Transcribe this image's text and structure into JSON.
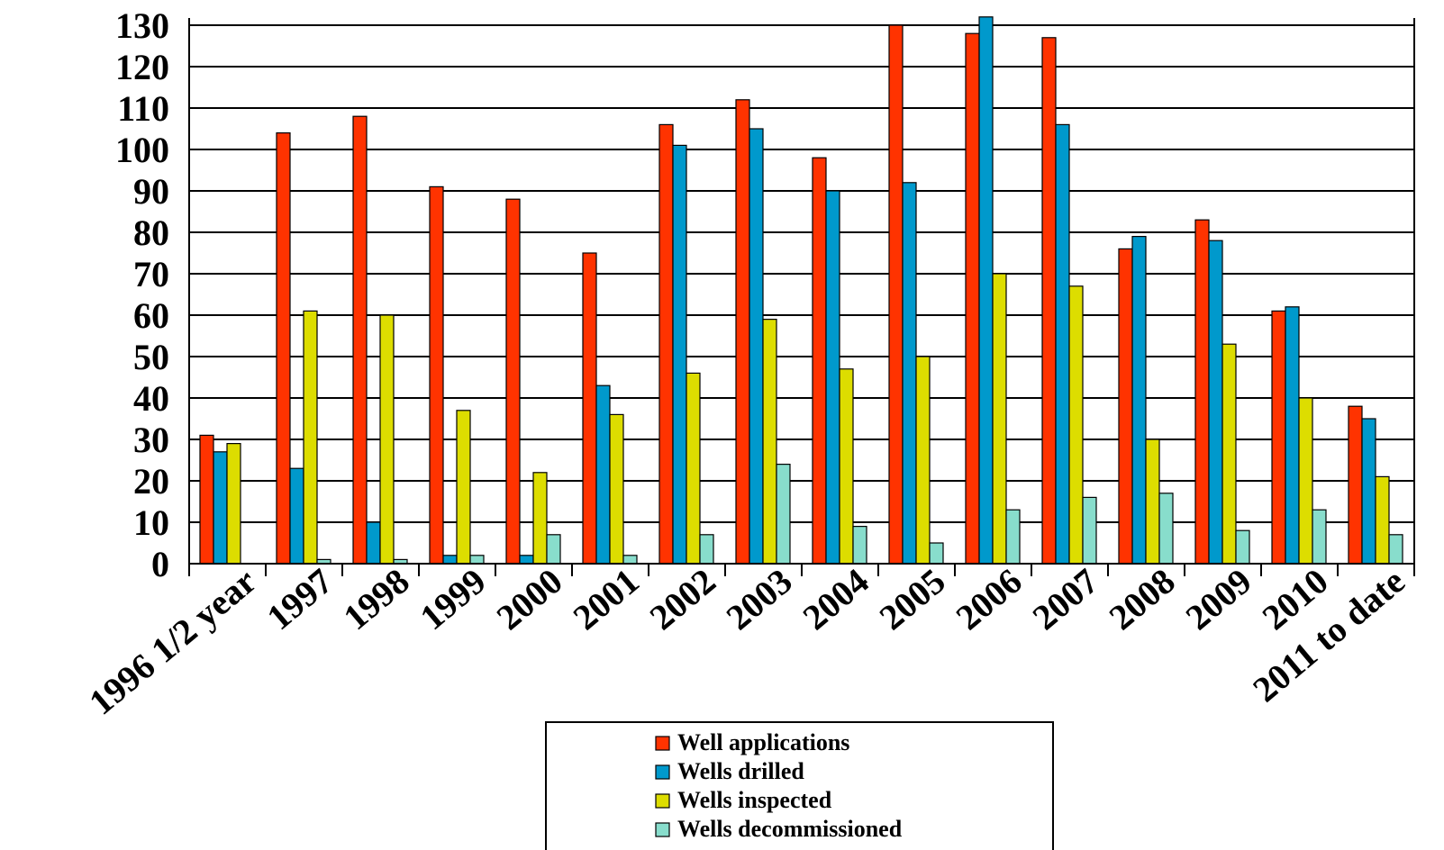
{
  "chart_data": {
    "type": "bar",
    "categories": [
      "1996 1/2 year",
      "1997",
      "1998",
      "1999",
      "2000",
      "2001",
      "2002",
      "2003",
      "2004",
      "2005",
      "2006",
      "2007",
      "2008",
      "2009",
      "2010",
      "2011 to date"
    ],
    "series": [
      {
        "name": "Well applications",
        "color": "#ff3300",
        "values": [
          31,
          104,
          108,
          91,
          88,
          75,
          106,
          112,
          98,
          130,
          128,
          127,
          76,
          83,
          61,
          38
        ]
      },
      {
        "name": "Wells drilled",
        "color": "#0099cc",
        "values": [
          27,
          23,
          10,
          2,
          2,
          43,
          101,
          105,
          90,
          92,
          132,
          106,
          79,
          78,
          62,
          35
        ]
      },
      {
        "name": "Wells inspected",
        "color": "#dddd00",
        "values": [
          29,
          61,
          60,
          37,
          22,
          36,
          46,
          59,
          47,
          50,
          70,
          67,
          30,
          53,
          40,
          21
        ]
      },
      {
        "name": "Wells decommissioned",
        "color": "#88ddcc",
        "values": [
          0,
          1,
          1,
          2,
          7,
          2,
          7,
          24,
          9,
          5,
          13,
          16,
          17,
          8,
          13,
          7
        ]
      }
    ],
    "yticks": [
      0,
      10,
      20,
      30,
      40,
      50,
      60,
      70,
      80,
      90,
      100,
      110,
      120,
      130
    ],
    "ylim": [
      0,
      130
    ],
    "grid": true,
    "legend_position": "bottom-center"
  }
}
